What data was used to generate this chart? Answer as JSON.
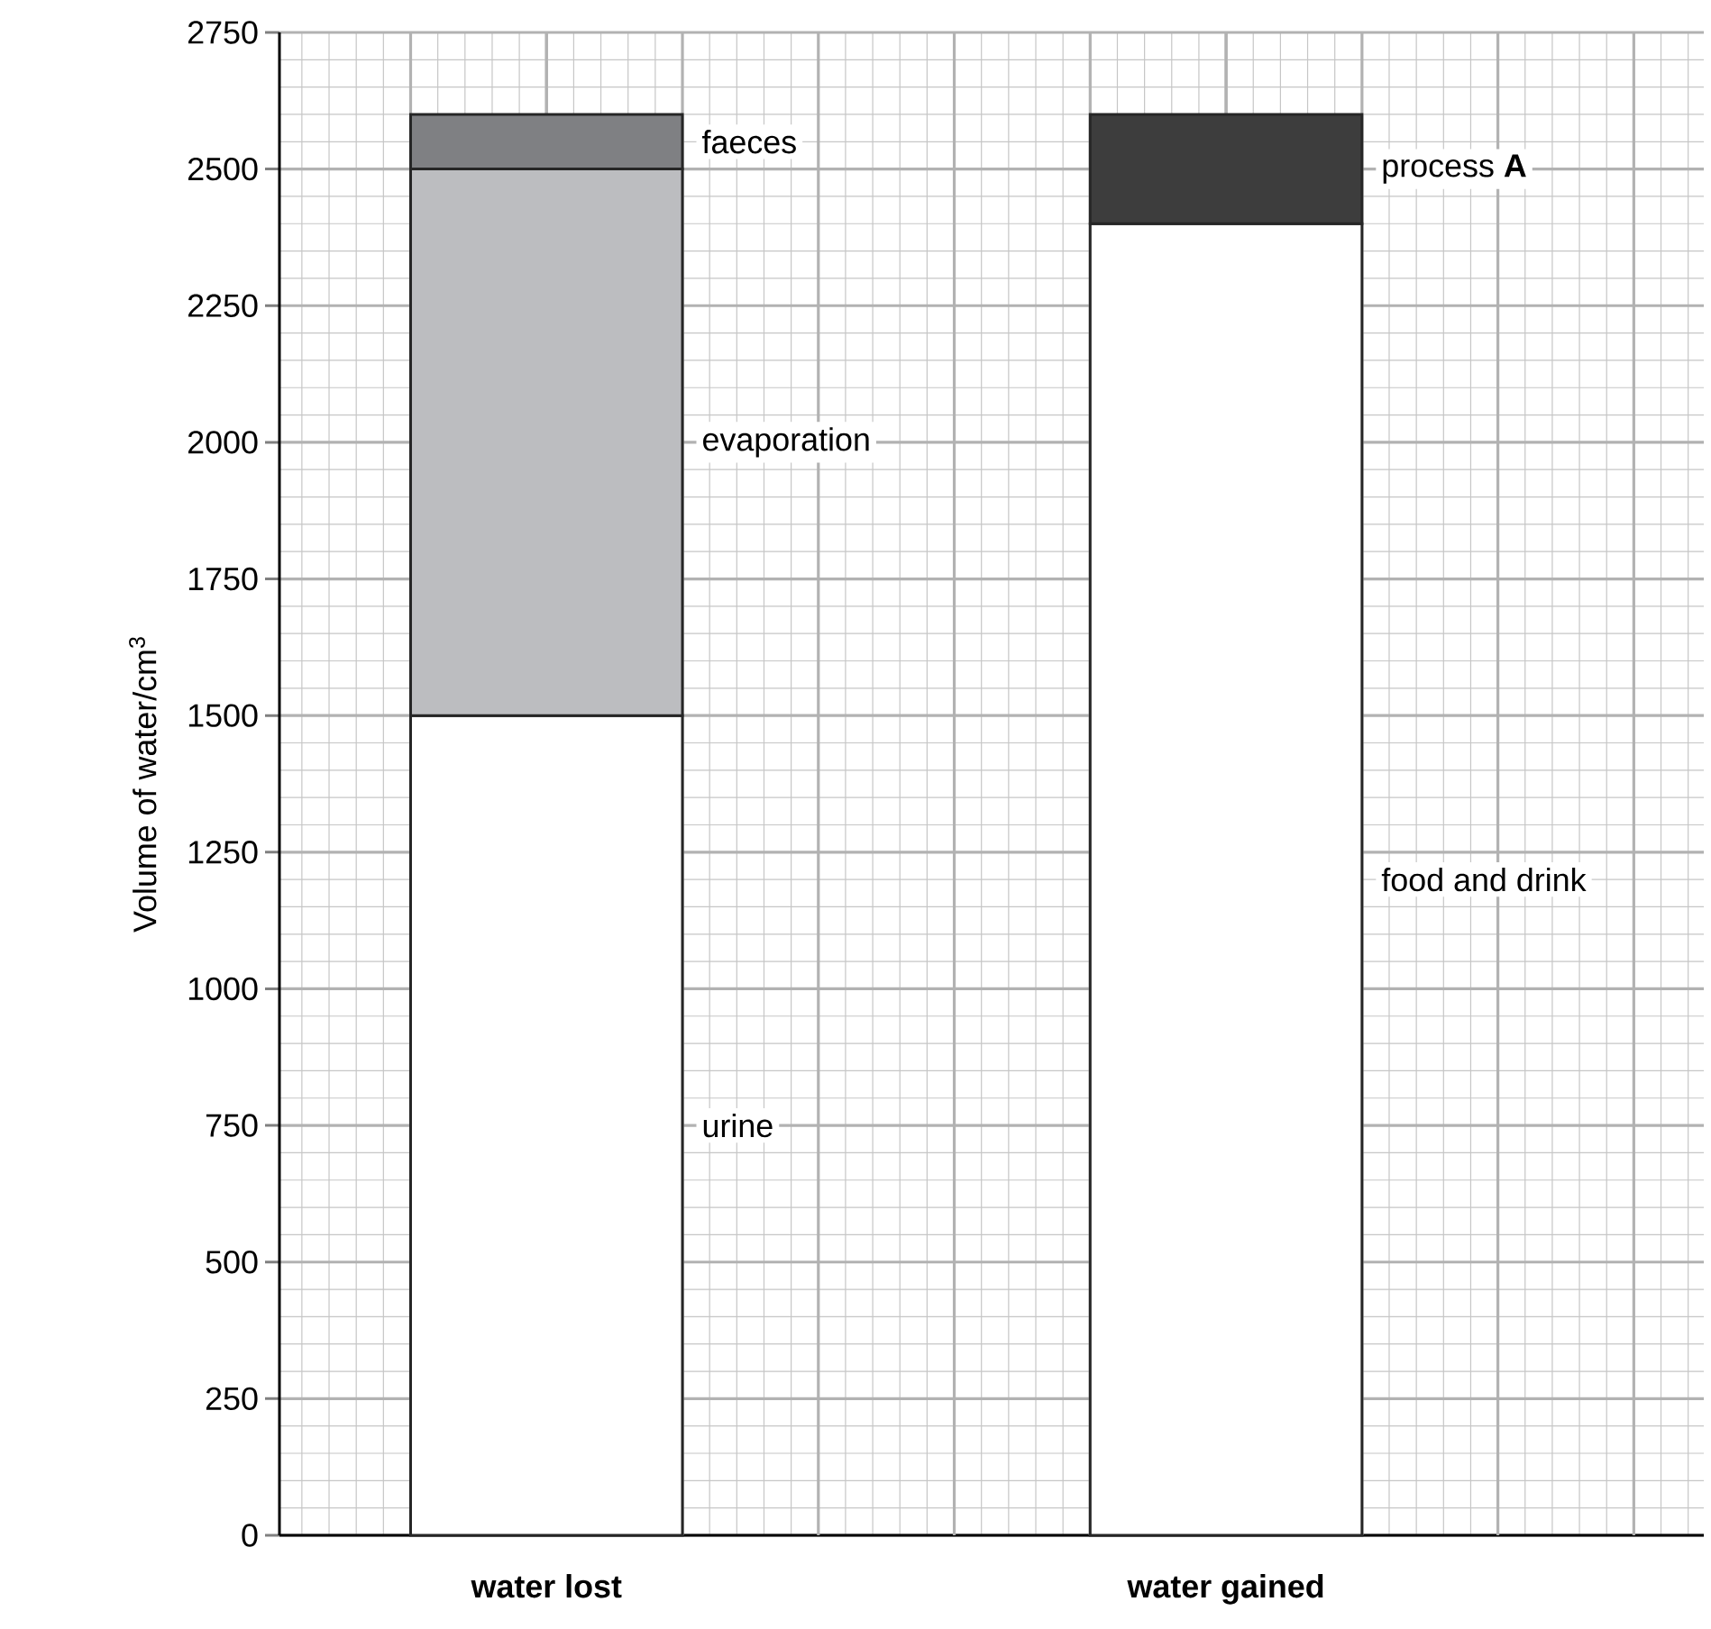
{
  "chart_data": {
    "type": "bar",
    "stacked": true,
    "ylabel": "Volume of water/cm$^{3}$",
    "categories": [
      "water lost",
      "water gained"
    ],
    "series": [
      {
        "name": "urine",
        "color": "#ffffff",
        "values": [
          1500,
          null
        ]
      },
      {
        "name": "evaporation",
        "color": "#bcbdc0",
        "values": [
          1000,
          null
        ]
      },
      {
        "name": "faeces",
        "color": "#7f8083",
        "values": [
          100,
          null
        ]
      },
      {
        "name": "food and drink",
        "color": "#ffffff",
        "values": [
          null,
          2400
        ]
      },
      {
        "name": "process **A**",
        "color": "#3d3d3d",
        "values": [
          null,
          200
        ]
      }
    ],
    "ylim": [
      0,
      2750
    ],
    "yticks": [
      0,
      250,
      500,
      750,
      1000,
      1250,
      1500,
      1750,
      2000,
      2250,
      2500,
      2750
    ],
    "grid": true
  }
}
